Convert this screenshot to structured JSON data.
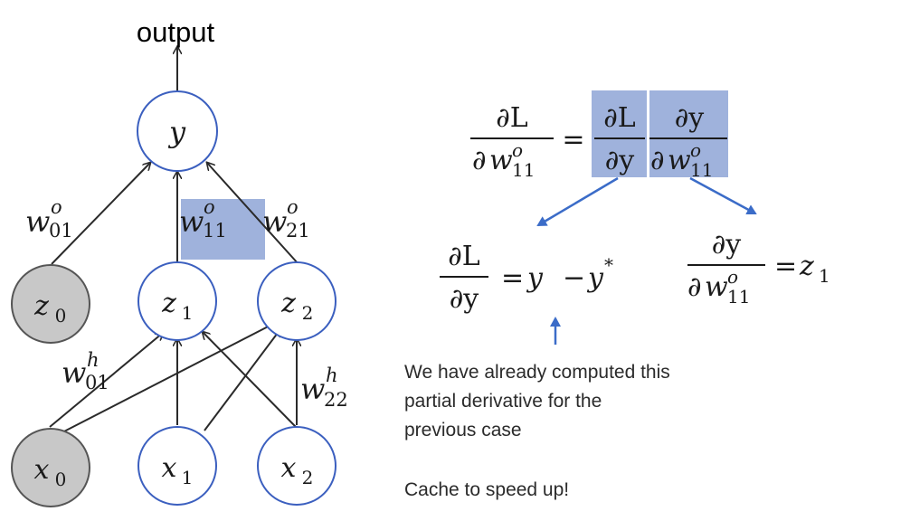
{
  "diagram": {
    "output_label": "output",
    "nodes": {
      "y": {
        "base": "y",
        "sub": ""
      },
      "z0": {
        "base": "z",
        "sub": "0"
      },
      "z1": {
        "base": "z",
        "sub": "1"
      },
      "z2": {
        "base": "z",
        "sub": "2"
      },
      "x0": {
        "base": "x",
        "sub": "0"
      },
      "x1": {
        "base": "x",
        "sub": "1"
      },
      "x2": {
        "base": "x",
        "sub": "2"
      }
    },
    "weights": {
      "w01o": {
        "base": "w",
        "sup": "o",
        "sub": "01"
      },
      "w11o": {
        "base": "w",
        "sup": "o",
        "sub": "11"
      },
      "w21o": {
        "base": "w",
        "sup": "o",
        "sub": "21"
      },
      "w01h": {
        "base": "w",
        "sup": "h",
        "sub": "01"
      },
      "w22h": {
        "base": "w",
        "sup": "h",
        "sub": "22"
      }
    },
    "colors": {
      "node_stroke": "#3b5fbf",
      "bias_fill": "#c8c8c8",
      "bias_stroke": "#555555",
      "edge": "#2a2a2a",
      "highlight": "#9fb2dc",
      "arrow_blue": "#3b6cc8"
    }
  },
  "equations": {
    "main": {
      "lhs_num": "∂L",
      "lhs_den_d": "∂",
      "lhs_den_w": "w",
      "lhs_den_sup": "o",
      "lhs_den_sub": "11",
      "equals": "=",
      "f1_num": "∂L",
      "f1_den": "∂y",
      "f2_num": "∂y",
      "f2_den_d": "∂",
      "f2_den_w": "w",
      "f2_den_sup": "o",
      "f2_den_sub": "11"
    },
    "left": {
      "num": "∂L",
      "den": "∂y",
      "equals": "=",
      "rhs_y": "y",
      "minus": "−",
      "rhs_ystar": "y",
      "star": "*"
    },
    "right": {
      "num": "∂y",
      "den_d": "∂",
      "den_w": "w",
      "den_sup": "o",
      "den_sub": "11",
      "equals": "=",
      "rhs": "z",
      "rhs_sub": "1"
    }
  },
  "notes": {
    "line1": "We have already computed this",
    "line2": "partial derivative for the",
    "line3": "previous case",
    "line4": "Cache to speed up!"
  }
}
